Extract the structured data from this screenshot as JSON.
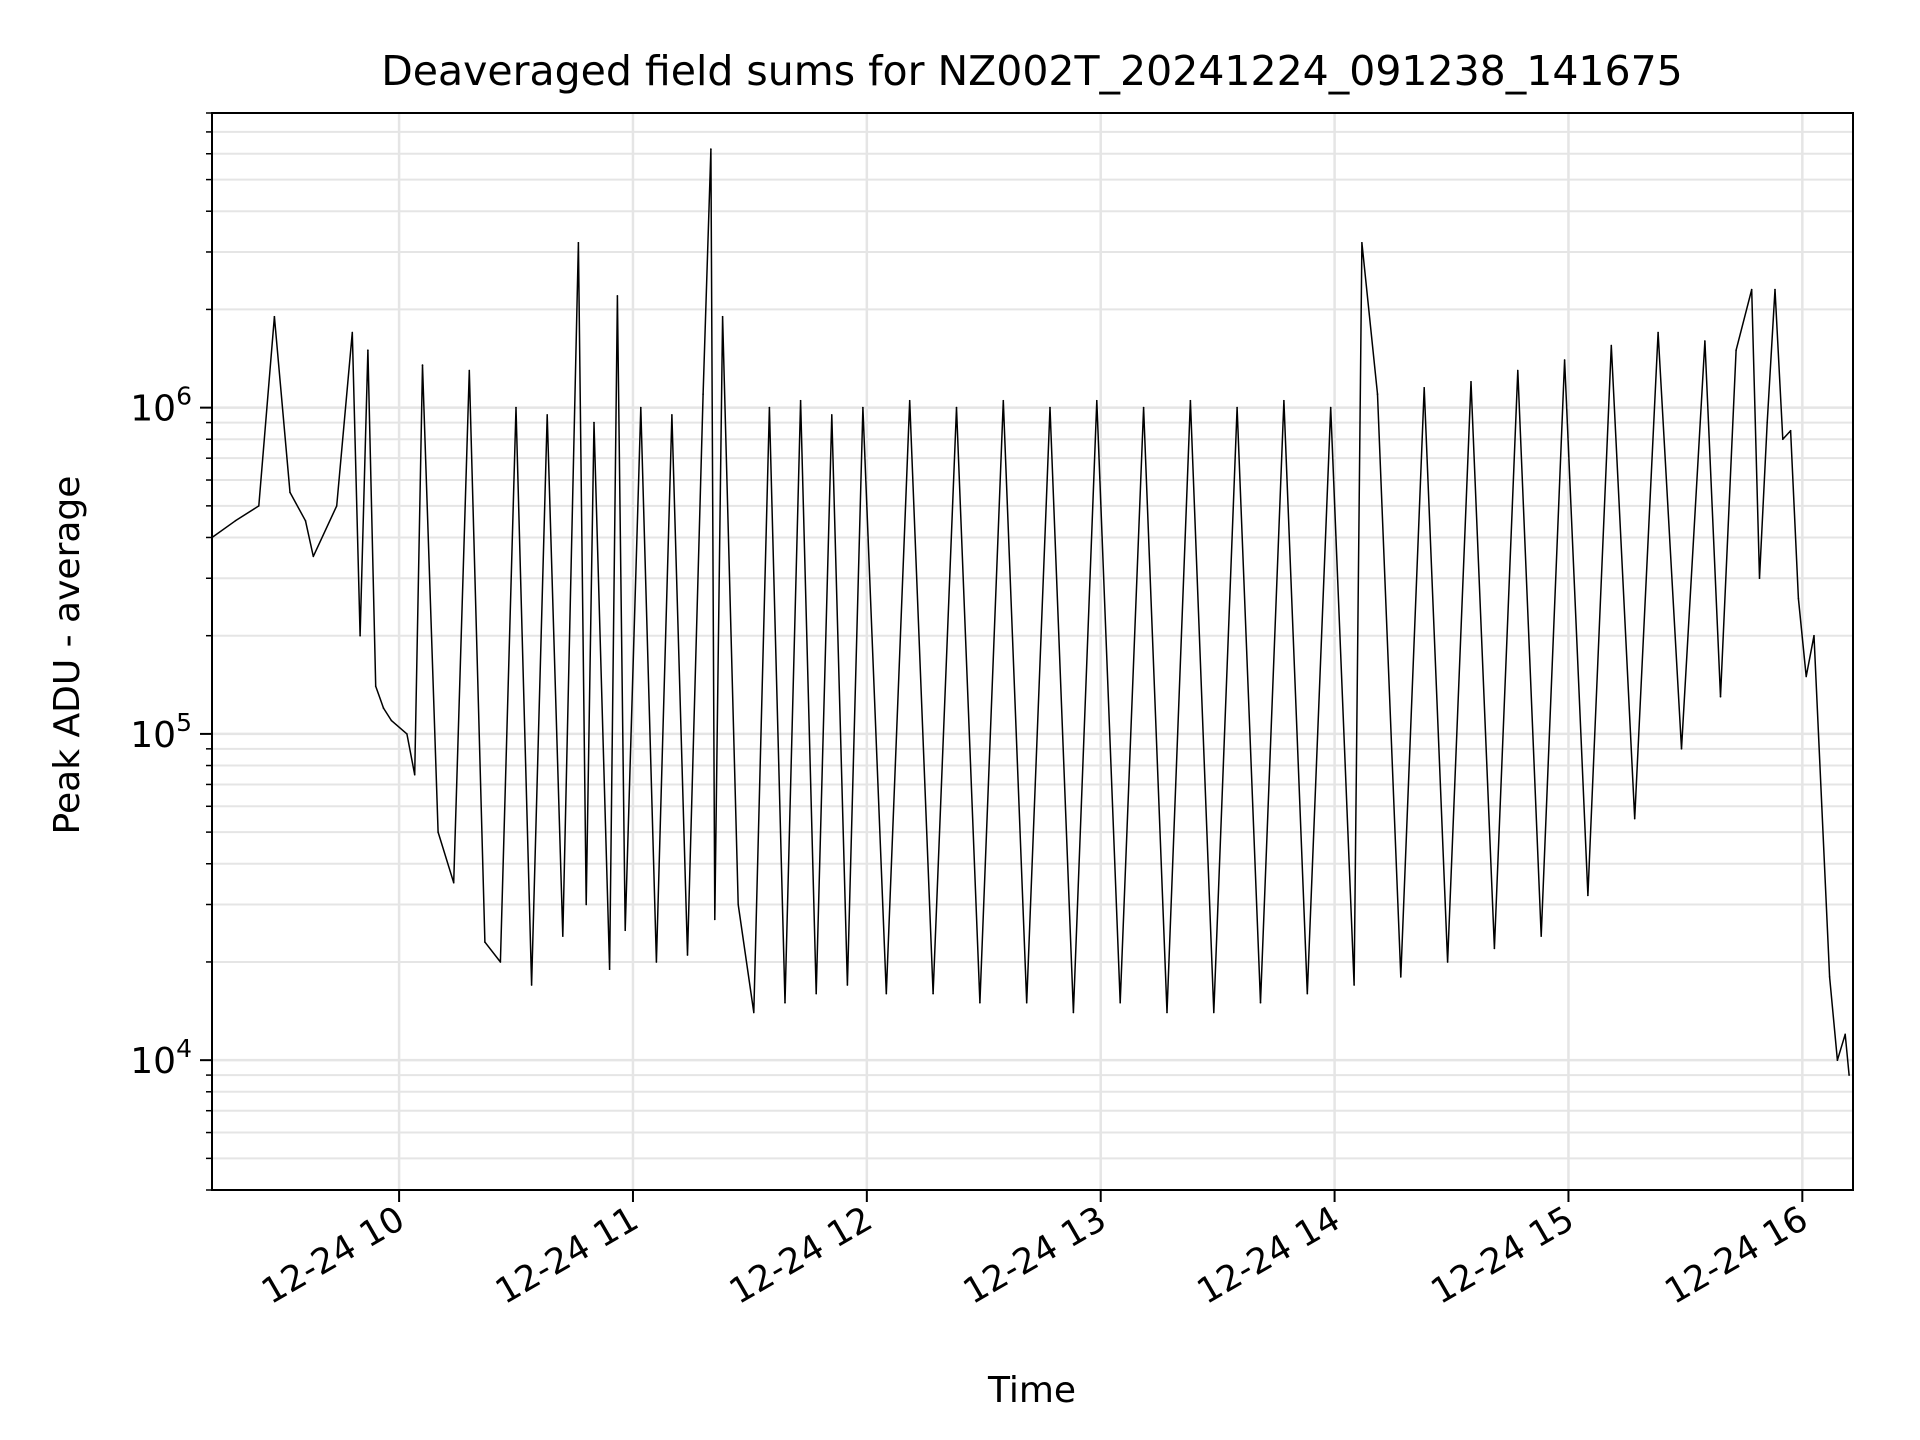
{
  "chart_data": {
    "type": "line",
    "title": "Deaveraged field sums for NZ002T_20241224_091238_141675",
    "xlabel": "Time",
    "ylabel": "Peak ADU - average",
    "yscale": "log",
    "xlim": [
      "2024-12-24 09:12",
      "2024-12-24 16:13"
    ],
    "ylim": [
      4000,
      8000000
    ],
    "grid": true,
    "x_ticks": [
      {
        "value": "2024-12-24 10:00",
        "label": "12-24 10"
      },
      {
        "value": "2024-12-24 11:00",
        "label": "12-24 11"
      },
      {
        "value": "2024-12-24 12:00",
        "label": "12-24 12"
      },
      {
        "value": "2024-12-24 13:00",
        "label": "12-24 13"
      },
      {
        "value": "2024-12-24 14:00",
        "label": "12-24 14"
      },
      {
        "value": "2024-12-24 15:00",
        "label": "12-24 15"
      },
      {
        "value": "2024-12-24 16:00",
        "label": "12-24 16"
      }
    ],
    "y_ticks": [
      {
        "value": 10000,
        "base": "10",
        "exp": "4"
      },
      {
        "value": 100000,
        "base": "10",
        "exp": "5"
      },
      {
        "value": 1000000,
        "base": "10",
        "exp": "6"
      }
    ],
    "series": [
      {
        "color": "#000000",
        "x": [
          "09:12",
          "09:18",
          "09:24",
          "09:28",
          "09:32",
          "09:36",
          "09:38",
          "09:44",
          "09:48",
          "09:50",
          "09:52",
          "09:54",
          "09:56",
          "09:58",
          "10:02",
          "10:04",
          "10:06",
          "10:10",
          "10:14",
          "10:18",
          "10:22",
          "10:26",
          "10:30",
          "10:34",
          "10:38",
          "10:42",
          "10:46",
          "10:48",
          "10:50",
          "10:54",
          "10:56",
          "10:58",
          "11:02",
          "11:06",
          "11:10",
          "11:14",
          "11:18",
          "11:20",
          "11:21",
          "11:23",
          "11:27",
          "11:31",
          "11:35",
          "11:39",
          "11:43",
          "11:47",
          "11:51",
          "11:55",
          "11:59",
          "12:05",
          "12:11",
          "12:17",
          "12:23",
          "12:29",
          "12:35",
          "12:41",
          "12:47",
          "12:53",
          "12:59",
          "13:05",
          "13:11",
          "13:17",
          "13:23",
          "13:29",
          "13:35",
          "13:41",
          "13:47",
          "13:53",
          "13:59",
          "14:05",
          "14:07",
          "14:11",
          "14:17",
          "14:23",
          "14:29",
          "14:35",
          "14:41",
          "14:47",
          "14:53",
          "14:59",
          "15:05",
          "15:11",
          "15:17",
          "15:23",
          "15:29",
          "15:35",
          "15:39",
          "15:43",
          "15:47",
          "15:49",
          "15:51",
          "15:53",
          "15:55",
          "15:57",
          "15:59",
          "16:01",
          "16:03",
          "16:05",
          "16:07",
          "16:09",
          "16:11",
          "16:12"
        ],
        "y": [
          400000,
          450000,
          500000,
          1900000,
          550000,
          450000,
          350000,
          500000,
          1700000,
          200000,
          1500000,
          140000,
          120000,
          110000,
          100000,
          75000,
          1350000,
          50000,
          35000,
          1300000,
          23000,
          20000,
          1000000,
          17000,
          950000,
          24000,
          3200000,
          30000,
          900000,
          19000,
          2200000,
          25000,
          1000000,
          20000,
          950000,
          21000,
          1100000,
          6200000,
          27000,
          1900000,
          30000,
          14000,
          1000000,
          15000,
          1050000,
          16000,
          950000,
          17000,
          1000000,
          16000,
          1050000,
          16000,
          1000000,
          15000,
          1050000,
          15000,
          1000000,
          14000,
          1050000,
          15000,
          1000000,
          14000,
          1050000,
          14000,
          1000000,
          15000,
          1050000,
          16000,
          1000000,
          17000,
          3200000,
          1100000,
          18000,
          1150000,
          20000,
          1200000,
          22000,
          1300000,
          24000,
          1400000,
          32000,
          1550000,
          55000,
          1700000,
          90000,
          1600000,
          130000,
          1500000,
          2300000,
          300000,
          900000,
          2300000,
          800000,
          850000,
          260000,
          150000,
          200000,
          60000,
          18000,
          10000,
          12000,
          9000
        ]
      }
    ]
  }
}
